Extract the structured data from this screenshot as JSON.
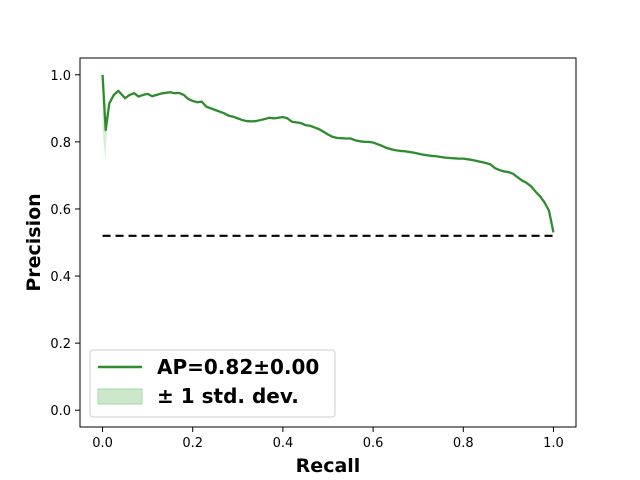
{
  "chart_data": {
    "type": "line",
    "title": "",
    "xlabel": "Recall",
    "ylabel": "Precision",
    "xlim": [
      -0.05,
      1.05
    ],
    "ylim": [
      -0.05,
      1.05
    ],
    "xticks": [
      0.0,
      0.2,
      0.4,
      0.6,
      0.8,
      1.0
    ],
    "xtick_labels": [
      "0.0",
      "0.2",
      "0.4",
      "0.6",
      "0.8",
      "1.0"
    ],
    "yticks": [
      0.0,
      0.2,
      0.4,
      0.6,
      0.8,
      1.0
    ],
    "ytick_labels": [
      "0.0",
      "0.2",
      "0.4",
      "0.6",
      "0.8",
      "1.0"
    ],
    "grid": false,
    "legend_position": "lower-left",
    "colors": {
      "curve": "#2e8b2e",
      "band": "#a8d8a8",
      "baseline": "#000000"
    },
    "series": [
      {
        "name": "AP=0.82±0.00",
        "style": "solid",
        "x": [
          0.0,
          0.007,
          0.015,
          0.025,
          0.035,
          0.04,
          0.05,
          0.06,
          0.07,
          0.08,
          0.09,
          0.1,
          0.11,
          0.12,
          0.13,
          0.14,
          0.15,
          0.16,
          0.17,
          0.18,
          0.19,
          0.2,
          0.21,
          0.22,
          0.23,
          0.24,
          0.25,
          0.26,
          0.27,
          0.28,
          0.29,
          0.3,
          0.31,
          0.32,
          0.33,
          0.34,
          0.35,
          0.36,
          0.37,
          0.38,
          0.39,
          0.4,
          0.41,
          0.42,
          0.43,
          0.44,
          0.45,
          0.46,
          0.47,
          0.48,
          0.49,
          0.5,
          0.51,
          0.52,
          0.53,
          0.54,
          0.55,
          0.56,
          0.57,
          0.58,
          0.59,
          0.6,
          0.61,
          0.62,
          0.63,
          0.64,
          0.65,
          0.66,
          0.67,
          0.68,
          0.69,
          0.7,
          0.71,
          0.72,
          0.73,
          0.74,
          0.75,
          0.76,
          0.77,
          0.78,
          0.79,
          0.8,
          0.81,
          0.82,
          0.83,
          0.84,
          0.85,
          0.86,
          0.87,
          0.88,
          0.89,
          0.9,
          0.91,
          0.92,
          0.93,
          0.94,
          0.95,
          0.96,
          0.97,
          0.98,
          0.99,
          1.0
        ],
        "y": [
          1.0,
          0.835,
          0.915,
          0.94,
          0.952,
          0.945,
          0.93,
          0.94,
          0.945,
          0.935,
          0.94,
          0.943,
          0.936,
          0.94,
          0.944,
          0.946,
          0.948,
          0.945,
          0.946,
          0.94,
          0.928,
          0.922,
          0.918,
          0.92,
          0.905,
          0.9,
          0.895,
          0.89,
          0.885,
          0.878,
          0.875,
          0.87,
          0.865,
          0.862,
          0.861,
          0.862,
          0.865,
          0.868,
          0.872,
          0.87,
          0.872,
          0.874,
          0.87,
          0.86,
          0.858,
          0.856,
          0.85,
          0.848,
          0.843,
          0.838,
          0.83,
          0.822,
          0.815,
          0.812,
          0.811,
          0.81,
          0.81,
          0.805,
          0.802,
          0.8,
          0.8,
          0.798,
          0.793,
          0.788,
          0.782,
          0.778,
          0.775,
          0.773,
          0.772,
          0.77,
          0.768,
          0.765,
          0.762,
          0.76,
          0.758,
          0.757,
          0.755,
          0.753,
          0.752,
          0.751,
          0.75,
          0.75,
          0.748,
          0.746,
          0.743,
          0.74,
          0.737,
          0.733,
          0.722,
          0.716,
          0.712,
          0.71,
          0.705,
          0.695,
          0.685,
          0.678,
          0.668,
          0.652,
          0.638,
          0.62,
          0.595,
          0.53
        ]
      },
      {
        "name": "± 1 std. dev.",
        "style": "band",
        "x": [
          0.0,
          0.003,
          0.006,
          0.009
        ],
        "y_low": [
          0.84,
          0.79,
          0.75,
          0.82
        ],
        "y_high": [
          1.0,
          0.98,
          0.9,
          0.86
        ]
      },
      {
        "name": "",
        "style": "dashed",
        "x": [
          0.0,
          1.0
        ],
        "y": [
          0.52,
          0.52
        ]
      }
    ]
  }
}
